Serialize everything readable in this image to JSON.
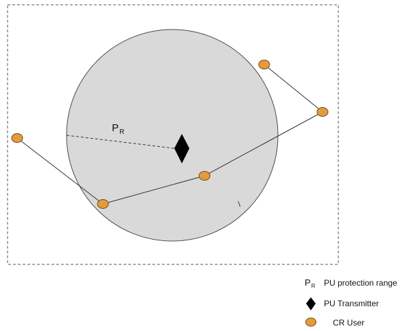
{
  "colors": {
    "circle_fill": "#d9d9d9",
    "circle_stroke": "#4a4a4a",
    "cr_user_fill": "#e39b3e",
    "cr_user_stroke": "#7a4a12",
    "pu_fill": "#000000",
    "link_stroke": "#333333",
    "border_stroke": "#555555"
  },
  "diagram": {
    "radius_label": {
      "main": "P",
      "sub": "R"
    }
  },
  "legend": {
    "protection": {
      "symbol": "P",
      "symbol_sub": "R",
      "label": "PU protection range"
    },
    "transmitter": {
      "icon": "diamond-icon",
      "label": "PU Transmitter"
    },
    "cr_user": {
      "icon": "ellipse-icon",
      "label": "CR User"
    }
  }
}
